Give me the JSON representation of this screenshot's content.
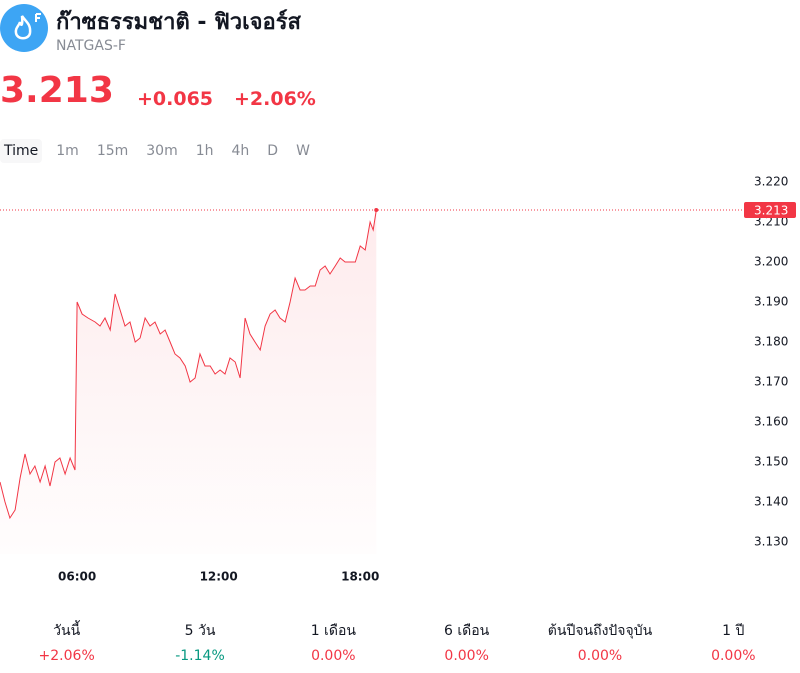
{
  "header": {
    "title": "ก๊าซธรรมชาติ - ฟิวเจอร์ส",
    "symbol": "NATGAS-F",
    "price": "3.213",
    "change": "+0.065",
    "change_percent": "+2.06%"
  },
  "tabs": [
    "Time",
    "1m",
    "15m",
    "30m",
    "1h",
    "4h",
    "D",
    "W"
  ],
  "chart_data": {
    "type": "line",
    "color": "#f23645",
    "last_price": 3.213,
    "x": [
      2.73,
      2.94,
      3.15,
      3.37,
      3.58,
      3.79,
      4.0,
      4.21,
      4.43,
      4.64,
      4.85,
      5.06,
      5.27,
      5.49,
      5.7,
      5.91,
      6.0,
      6.21,
      6.46,
      6.76,
      6.97,
      7.18,
      7.4,
      7.61,
      7.82,
      8.03,
      8.24,
      8.46,
      8.67,
      8.88,
      9.09,
      9.3,
      9.52,
      9.73,
      9.94,
      10.15,
      10.36,
      10.58,
      10.79,
      11.0,
      11.21,
      11.42,
      11.64,
      11.85,
      12.06,
      12.27,
      12.48,
      12.7,
      12.91,
      13.12,
      13.33,
      13.54,
      13.76,
      13.97,
      14.18,
      14.39,
      14.6,
      14.82,
      15.03,
      15.24,
      15.45,
      15.66,
      15.88,
      16.09,
      16.3,
      16.51,
      16.72,
      16.94,
      17.15,
      17.36,
      17.57,
      17.79,
      18.0,
      18.21,
      18.42,
      18.55,
      18.68
    ],
    "values": [
      3.145,
      3.14,
      3.136,
      3.138,
      3.146,
      3.152,
      3.147,
      3.149,
      3.145,
      3.149,
      3.144,
      3.15,
      3.151,
      3.147,
      3.151,
      3.148,
      3.19,
      3.187,
      3.186,
      3.185,
      3.184,
      3.186,
      3.183,
      3.192,
      3.188,
      3.184,
      3.185,
      3.18,
      3.181,
      3.186,
      3.184,
      3.185,
      3.182,
      3.183,
      3.18,
      3.177,
      3.176,
      3.174,
      3.17,
      3.171,
      3.177,
      3.174,
      3.174,
      3.172,
      3.173,
      3.172,
      3.176,
      3.175,
      3.171,
      3.186,
      3.182,
      3.18,
      3.178,
      3.184,
      3.187,
      3.188,
      3.186,
      3.185,
      3.19,
      3.196,
      3.193,
      3.193,
      3.194,
      3.194,
      3.198,
      3.199,
      3.197,
      3.199,
      3.201,
      3.2,
      3.2,
      3.2,
      3.204,
      3.203,
      3.21,
      3.208,
      3.213
    ],
    "xlim": [
      2.73,
      34.1
    ],
    "ylim": [
      3.127,
      3.223
    ],
    "xticks": [
      {
        "value": 6,
        "label": "06:00"
      },
      {
        "value": 12,
        "label": "12:00"
      },
      {
        "value": 18,
        "label": "18:00"
      }
    ],
    "yticks": [
      {
        "value": 3.13,
        "label": "3.130"
      },
      {
        "value": 3.14,
        "label": "3.140"
      },
      {
        "value": 3.15,
        "label": "3.150"
      },
      {
        "value": 3.16,
        "label": "3.160"
      },
      {
        "value": 3.17,
        "label": "3.170"
      },
      {
        "value": 3.18,
        "label": "3.180"
      },
      {
        "value": 3.19,
        "label": "3.190"
      },
      {
        "value": 3.2,
        "label": "3.200"
      },
      {
        "value": 3.21,
        "label": "3.210"
      },
      {
        "value": 3.22,
        "label": "3.220"
      }
    ]
  },
  "performance": [
    {
      "label": "วันนี้",
      "value": "+2.06%",
      "trend": "up"
    },
    {
      "label": "5 วัน",
      "value": "-1.14%",
      "trend": "down"
    },
    {
      "label": "1 เดือน",
      "value": "0.00%",
      "trend": "up"
    },
    {
      "label": "6 เดือน",
      "value": "0.00%",
      "trend": "up"
    },
    {
      "label": "ต้นปีจนถึงปัจจุบัน",
      "value": "0.00%",
      "trend": "up"
    },
    {
      "label": "1 ปี",
      "value": "0.00%",
      "trend": "up"
    }
  ]
}
